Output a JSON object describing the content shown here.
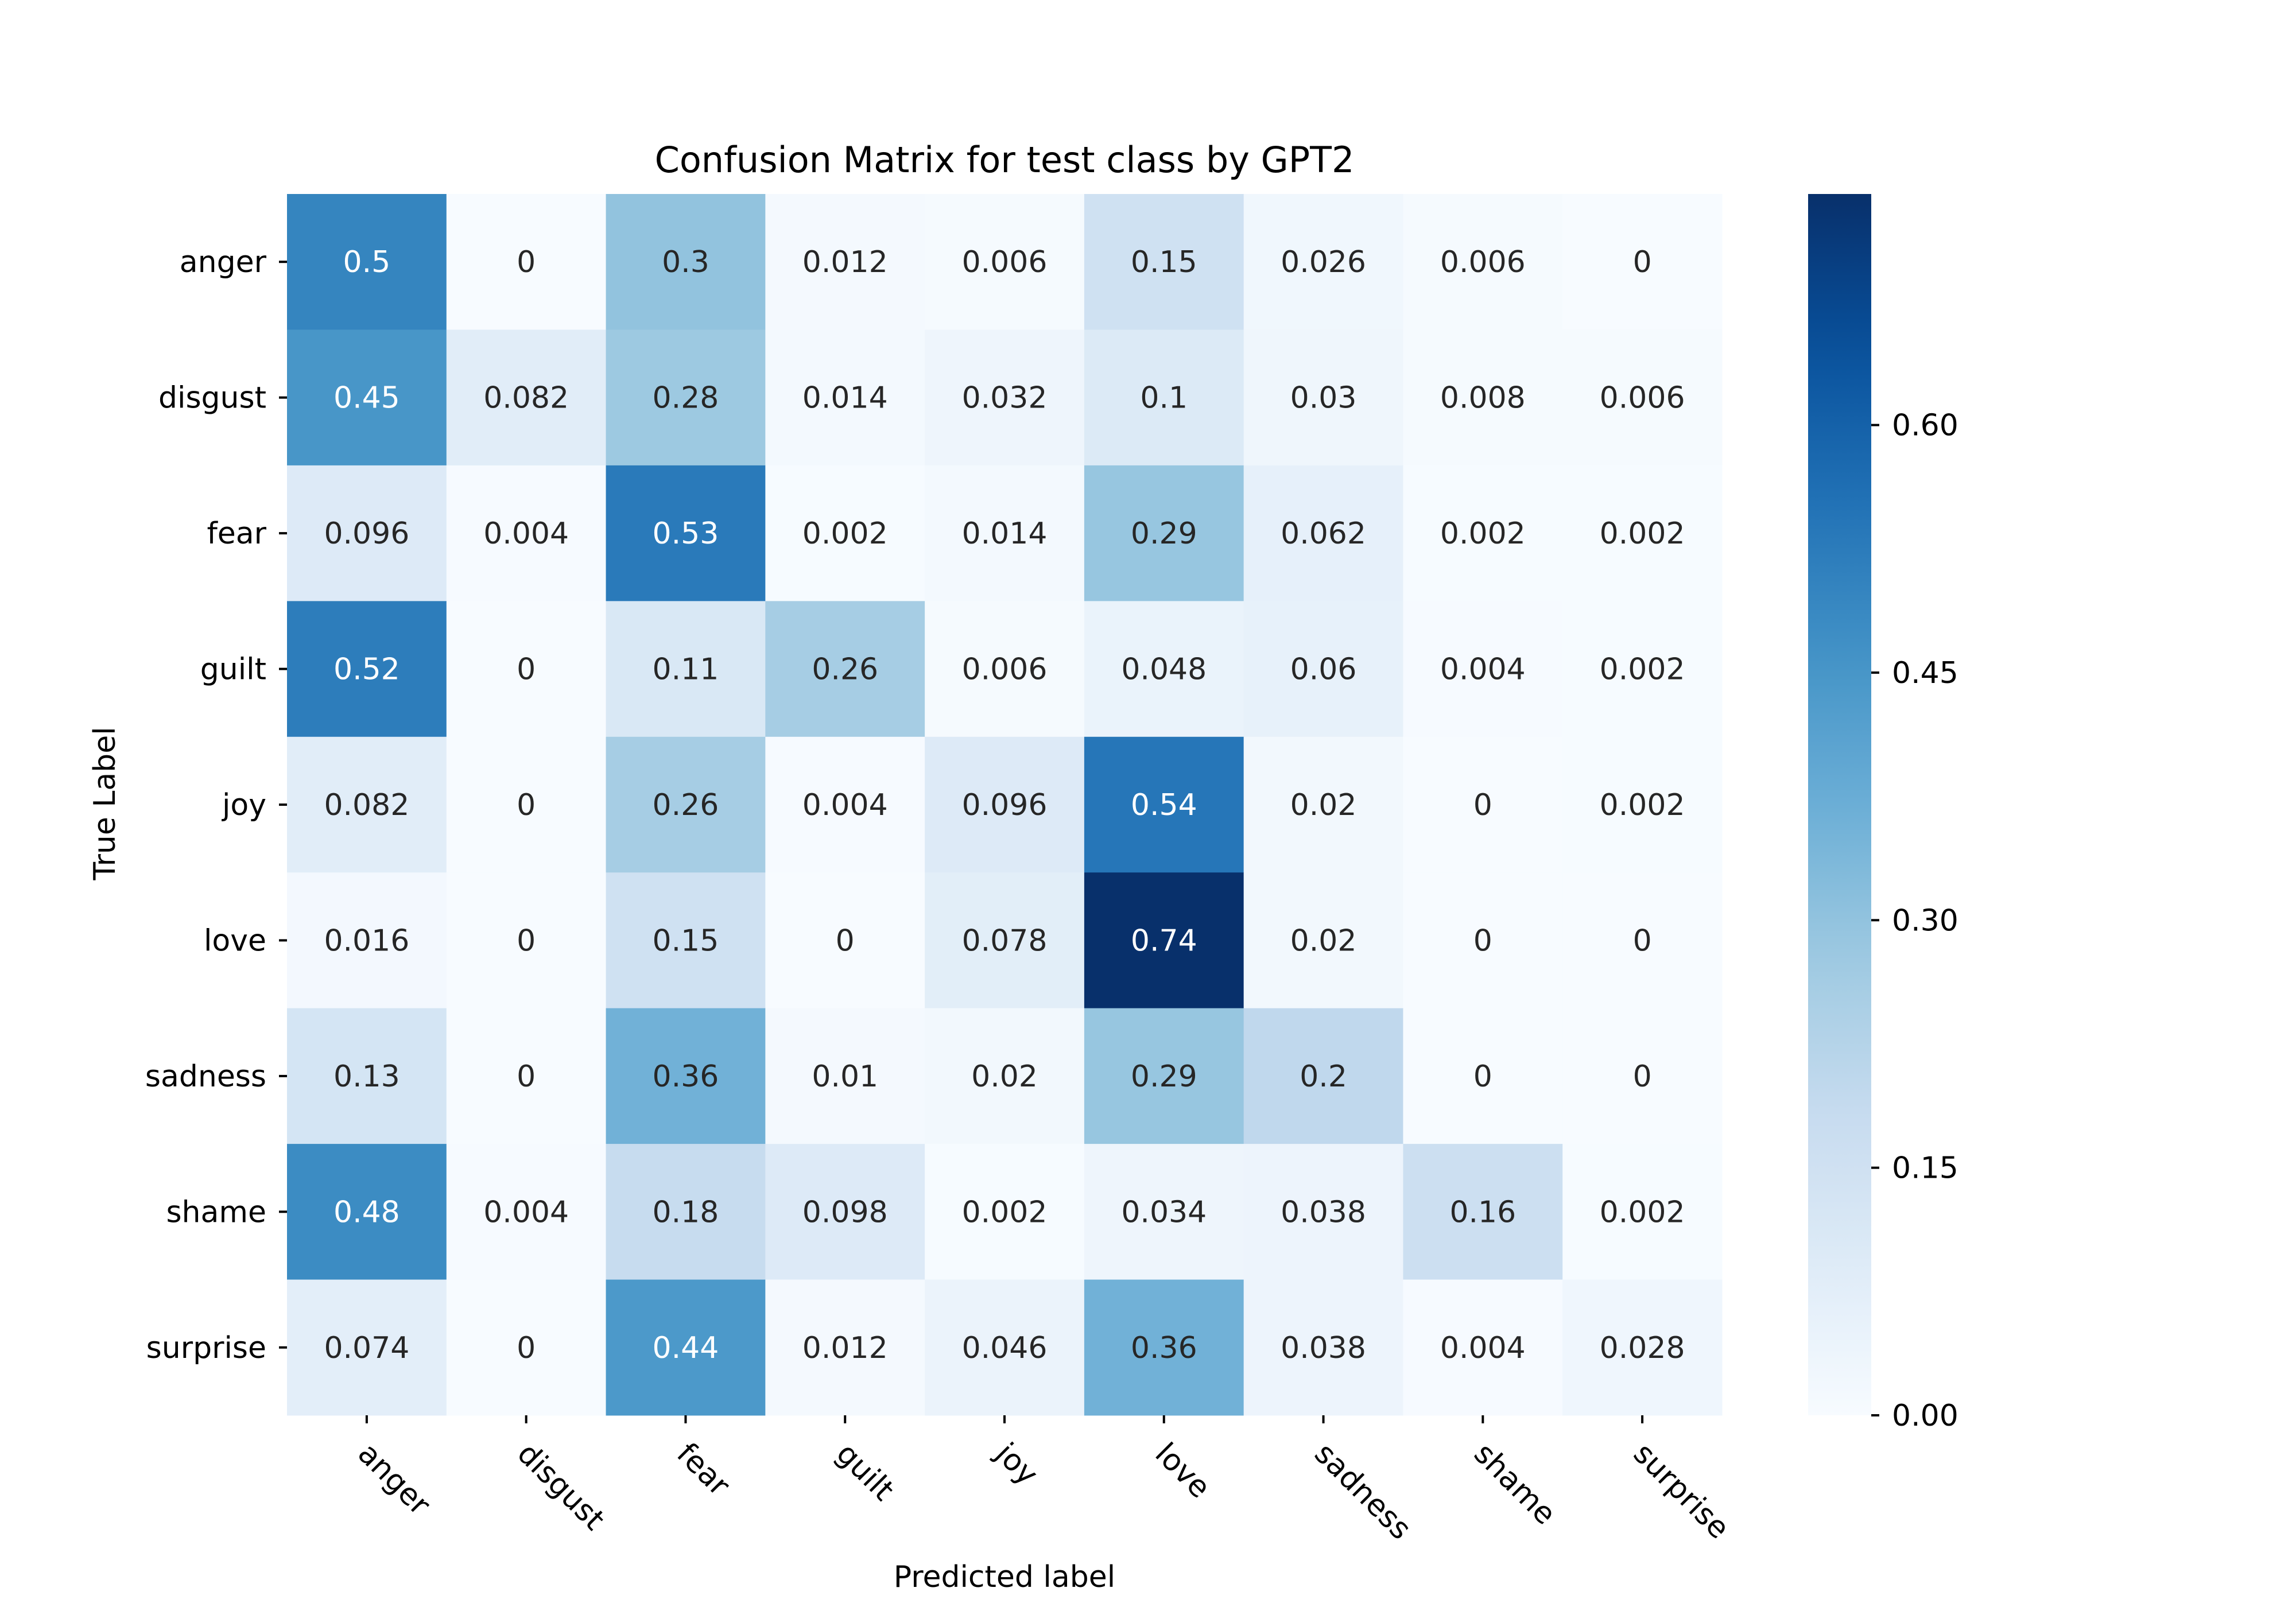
{
  "chart_data": {
    "type": "heatmap",
    "title": "Confusion Matrix for test class by GPT2",
    "xlabel": "Predicted label",
    "ylabel": "True Label",
    "x_categories": [
      "anger",
      "disgust",
      "fear",
      "guilt",
      "joy",
      "love",
      "sadness",
      "shame",
      "surprise"
    ],
    "y_categories": [
      "anger",
      "disgust",
      "fear",
      "guilt",
      "joy",
      "love",
      "sadness",
      "shame",
      "surprise"
    ],
    "values": [
      [
        0.5,
        0,
        0.3,
        0.012,
        0.006,
        0.15,
        0.026,
        0.006,
        0
      ],
      [
        0.45,
        0.082,
        0.28,
        0.014,
        0.032,
        0.1,
        0.03,
        0.008,
        0.006
      ],
      [
        0.096,
        0.004,
        0.53,
        0.002,
        0.014,
        0.29,
        0.062,
        0.002,
        0.002
      ],
      [
        0.52,
        0,
        0.11,
        0.26,
        0.006,
        0.048,
        0.06,
        0.004,
        0.002
      ],
      [
        0.082,
        0,
        0.26,
        0.004,
        0.096,
        0.54,
        0.02,
        0,
        0.002
      ],
      [
        0.016,
        0,
        0.15,
        0,
        0.078,
        0.74,
        0.02,
        0,
        0
      ],
      [
        0.13,
        0,
        0.36,
        0.01,
        0.02,
        0.29,
        0.2,
        0,
        0
      ],
      [
        0.48,
        0.004,
        0.18,
        0.098,
        0.002,
        0.034,
        0.038,
        0.16,
        0.002
      ],
      [
        0.074,
        0,
        0.44,
        0.012,
        0.046,
        0.36,
        0.038,
        0.004,
        0.028
      ]
    ],
    "colormap": "Blues",
    "colorbar": {
      "range": [
        0,
        0.74
      ],
      "ticks": [
        0.0,
        0.15,
        0.3,
        0.45,
        0.6
      ],
      "tick_labels": [
        "0.00",
        "0.15",
        "0.30",
        "0.45",
        "0.60"
      ]
    },
    "grid": false,
    "x_tick_rotation_deg": -45
  }
}
